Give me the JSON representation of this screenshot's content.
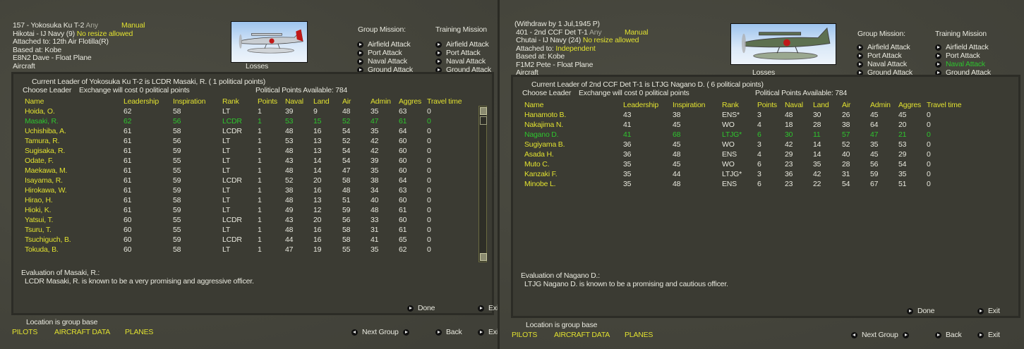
{
  "panels": [
    {
      "withdraw": "",
      "unit_name": "157 - Yokosuka Ku T-2",
      "any": "Any",
      "control": "Manual",
      "unit_type": "Hikotai - IJ Navy (9)",
      "resize": "No resize allowed",
      "attached_label": "Attached to:",
      "attached_value": "12th Air Flotilla(R)",
      "attached_color": "#e8e8de",
      "based_at": "Based at:  Kobe",
      "aircraft": "E8N2 Dave - Float Plane",
      "aircraft_label": "Aircraft",
      "losses_label": "Losses",
      "aircraft_image": "floatplane-biplane-silver",
      "group_mission_label": "Group Mission:",
      "training_mission_label": "Training Mission",
      "group_missions": [
        "Airfield Attack",
        "Port Attack",
        "Naval Attack",
        "Ground Attack"
      ],
      "training_missions": [
        "Airfield Attack",
        "Port Attack",
        "Naval Attack",
        "Ground Attack"
      ],
      "training_active_index": -1,
      "dialog": {
        "current_leader": "Current Leader of Yokosuka Ku T-2 is LCDR Masaki, R. ( 1 political points)",
        "choose_leader": "Choose Leader",
        "exchange_cost": "Exchange will cost 0 political points",
        "political_points": "Political Points Available:  784",
        "columns": [
          "Name",
          "Leadership",
          "Inspiration",
          "Rank",
          "Points",
          "Naval",
          "Land",
          "Air",
          "Admin",
          "Aggres",
          "Travel time"
        ],
        "rows": [
          {
            "cells": [
              "Hoida, O.",
              "62",
              "58",
              "LT",
              "1",
              "39",
              "9",
              "48",
              "35",
              "63",
              "0"
            ]
          },
          {
            "cells": [
              "Masaki, R.",
              "62",
              "56",
              "LCDR",
              "1",
              "53",
              "15",
              "52",
              "47",
              "61",
              "0"
            ],
            "selected": true
          },
          {
            "cells": [
              "Uchishiba, A.",
              "61",
              "58",
              "LCDR",
              "1",
              "48",
              "16",
              "54",
              "35",
              "64",
              "0"
            ]
          },
          {
            "cells": [
              "Tamura, R.",
              "61",
              "56",
              "LT",
              "1",
              "53",
              "13",
              "52",
              "42",
              "60",
              "0"
            ]
          },
          {
            "cells": [
              "Sugisaka, R.",
              "61",
              "59",
              "LT",
              "1",
              "48",
              "13",
              "54",
              "42",
              "60",
              "0"
            ]
          },
          {
            "cells": [
              "Odate, F.",
              "61",
              "55",
              "LT",
              "1",
              "43",
              "14",
              "54",
              "39",
              "60",
              "0"
            ]
          },
          {
            "cells": [
              "Maekawa, M.",
              "61",
              "55",
              "LT",
              "1",
              "48",
              "14",
              "47",
              "35",
              "60",
              "0"
            ]
          },
          {
            "cells": [
              "Isayama, R.",
              "61",
              "59",
              "LCDR",
              "1",
              "52",
              "20",
              "58",
              "38",
              "64",
              "0"
            ]
          },
          {
            "cells": [
              "Hirokawa, W.",
              "61",
              "59",
              "LT",
              "1",
              "38",
              "16",
              "48",
              "34",
              "63",
              "0"
            ]
          },
          {
            "cells": [
              "Hirao, H.",
              "61",
              "58",
              "LT",
              "1",
              "48",
              "13",
              "51",
              "40",
              "60",
              "0"
            ]
          },
          {
            "cells": [
              "Hioki, K.",
              "61",
              "59",
              "LT",
              "1",
              "49",
              "12",
              "59",
              "48",
              "61",
              "0"
            ]
          },
          {
            "cells": [
              "Yatsui, T.",
              "60",
              "55",
              "LCDR",
              "1",
              "43",
              "20",
              "56",
              "33",
              "60",
              "0"
            ]
          },
          {
            "cells": [
              "Tsuru, T.",
              "60",
              "55",
              "LT",
              "1",
              "48",
              "16",
              "58",
              "31",
              "61",
              "0"
            ]
          },
          {
            "cells": [
              "Tsuchiguch, B.",
              "60",
              "59",
              "LCDR",
              "1",
              "44",
              "16",
              "58",
              "41",
              "65",
              "0"
            ]
          },
          {
            "cells": [
              "Tokuda, B.",
              "60",
              "58",
              "LT",
              "1",
              "47",
              "19",
              "55",
              "35",
              "62",
              "0"
            ]
          }
        ],
        "has_scrollbar": true,
        "evaluation_title": "Evaluation of Masaki, R.:",
        "evaluation_text": "LCDR Masaki, R. is known to be a very promising and aggressive officer.",
        "done": "Done",
        "exit": "Exit"
      },
      "location": "Location is group base",
      "tabs": [
        "PILOTS",
        "AIRCRAFT DATA",
        "PLANES"
      ],
      "next_group": "Next Group",
      "back": "Back",
      "exit": "Exit"
    },
    {
      "withdraw": "(Withdraw by  1 Jul,1945  P)",
      "unit_name": "401 - 2nd CCF Det T-1",
      "any": "Any",
      "control": "Manual",
      "unit_type": "Chutai - IJ Navy (24)",
      "resize": "No resize allowed",
      "attached_label": "Attached to:",
      "attached_value": "Independent",
      "attached_color": "#e0e030",
      "based_at": "Based at:  Kobe",
      "aircraft": "F1M2 Pete - Float Plane",
      "aircraft_label": "Aircraft",
      "losses_label": "Losses",
      "aircraft_image": "floatplane-biplane-green",
      "group_mission_label": "Group Mission:",
      "training_mission_label": "Training Mission",
      "group_missions": [
        "Airfield Attack",
        "Port Attack",
        "Naval Attack",
        "Ground Attack"
      ],
      "training_missions": [
        "Airfield Attack",
        "Port Attack",
        "Naval Attack",
        "Ground Attack"
      ],
      "training_active_index": 2,
      "dialog": {
        "current_leader": "Current Leader of 2nd CCF Det T-1  is LTJG Nagano D. ( 6 political points)",
        "choose_leader": "Choose Leader",
        "exchange_cost": "Exchange will cost 0 political points",
        "political_points": "Political Points Available:  784",
        "columns": [
          "Name",
          "Leadership",
          "Inspiration",
          "Rank",
          "Points",
          "Naval",
          "Land",
          "Air",
          "Admin",
          "Aggres",
          "Travel time"
        ],
        "rows": [
          {
            "cells": [
              "Hanamoto B.",
              "43",
              "38",
              "ENS*",
              "3",
              "48",
              "30",
              "26",
              "45",
              "45",
              "0"
            ]
          },
          {
            "cells": [
              "Nakajima N.",
              "41",
              "45",
              "WO",
              "4",
              "18",
              "28",
              "38",
              "64",
              "20",
              "0"
            ]
          },
          {
            "cells": [
              "Nagano D.",
              "41",
              "68",
              "LTJG*",
              "6",
              "30",
              "11",
              "57",
              "47",
              "21",
              "0"
            ],
            "selected": true
          },
          {
            "cells": [
              "Sugiyama B.",
              "36",
              "45",
              "WO",
              "3",
              "42",
              "14",
              "52",
              "35",
              "53",
              "0"
            ]
          },
          {
            "cells": [
              "Asada H.",
              "36",
              "48",
              "ENS",
              "4",
              "29",
              "14",
              "40",
              "45",
              "29",
              "0"
            ]
          },
          {
            "cells": [
              "Muto C.",
              "35",
              "45",
              "WO",
              "6",
              "23",
              "35",
              "28",
              "56",
              "54",
              "0"
            ]
          },
          {
            "cells": [
              "Kanzaki F.",
              "35",
              "44",
              "LTJG*",
              "3",
              "36",
              "42",
              "31",
              "59",
              "35",
              "0"
            ]
          },
          {
            "cells": [
              "Minobe L.",
              "35",
              "48",
              "ENS",
              "6",
              "23",
              "22",
              "54",
              "67",
              "51",
              "0"
            ]
          }
        ],
        "has_scrollbar": false,
        "evaluation_title": "Evaluation of Nagano D.:",
        "evaluation_text": "LTJG Nagano D. is known to be a promising and cautious officer.",
        "done": "Done",
        "exit": "Exit"
      },
      "location": "Location is group base",
      "tabs": [
        "PILOTS",
        "AIRCRAFT DATA",
        "PLANES"
      ],
      "next_group": "Next Group",
      "back": "Back",
      "exit": "Exit"
    }
  ],
  "colors": {
    "text_yellow": "#e0e030",
    "text_white": "#e8e8de",
    "selected_green": "#2ec42e",
    "background": "#46463d",
    "dialog_background": "#3b3b33"
  }
}
